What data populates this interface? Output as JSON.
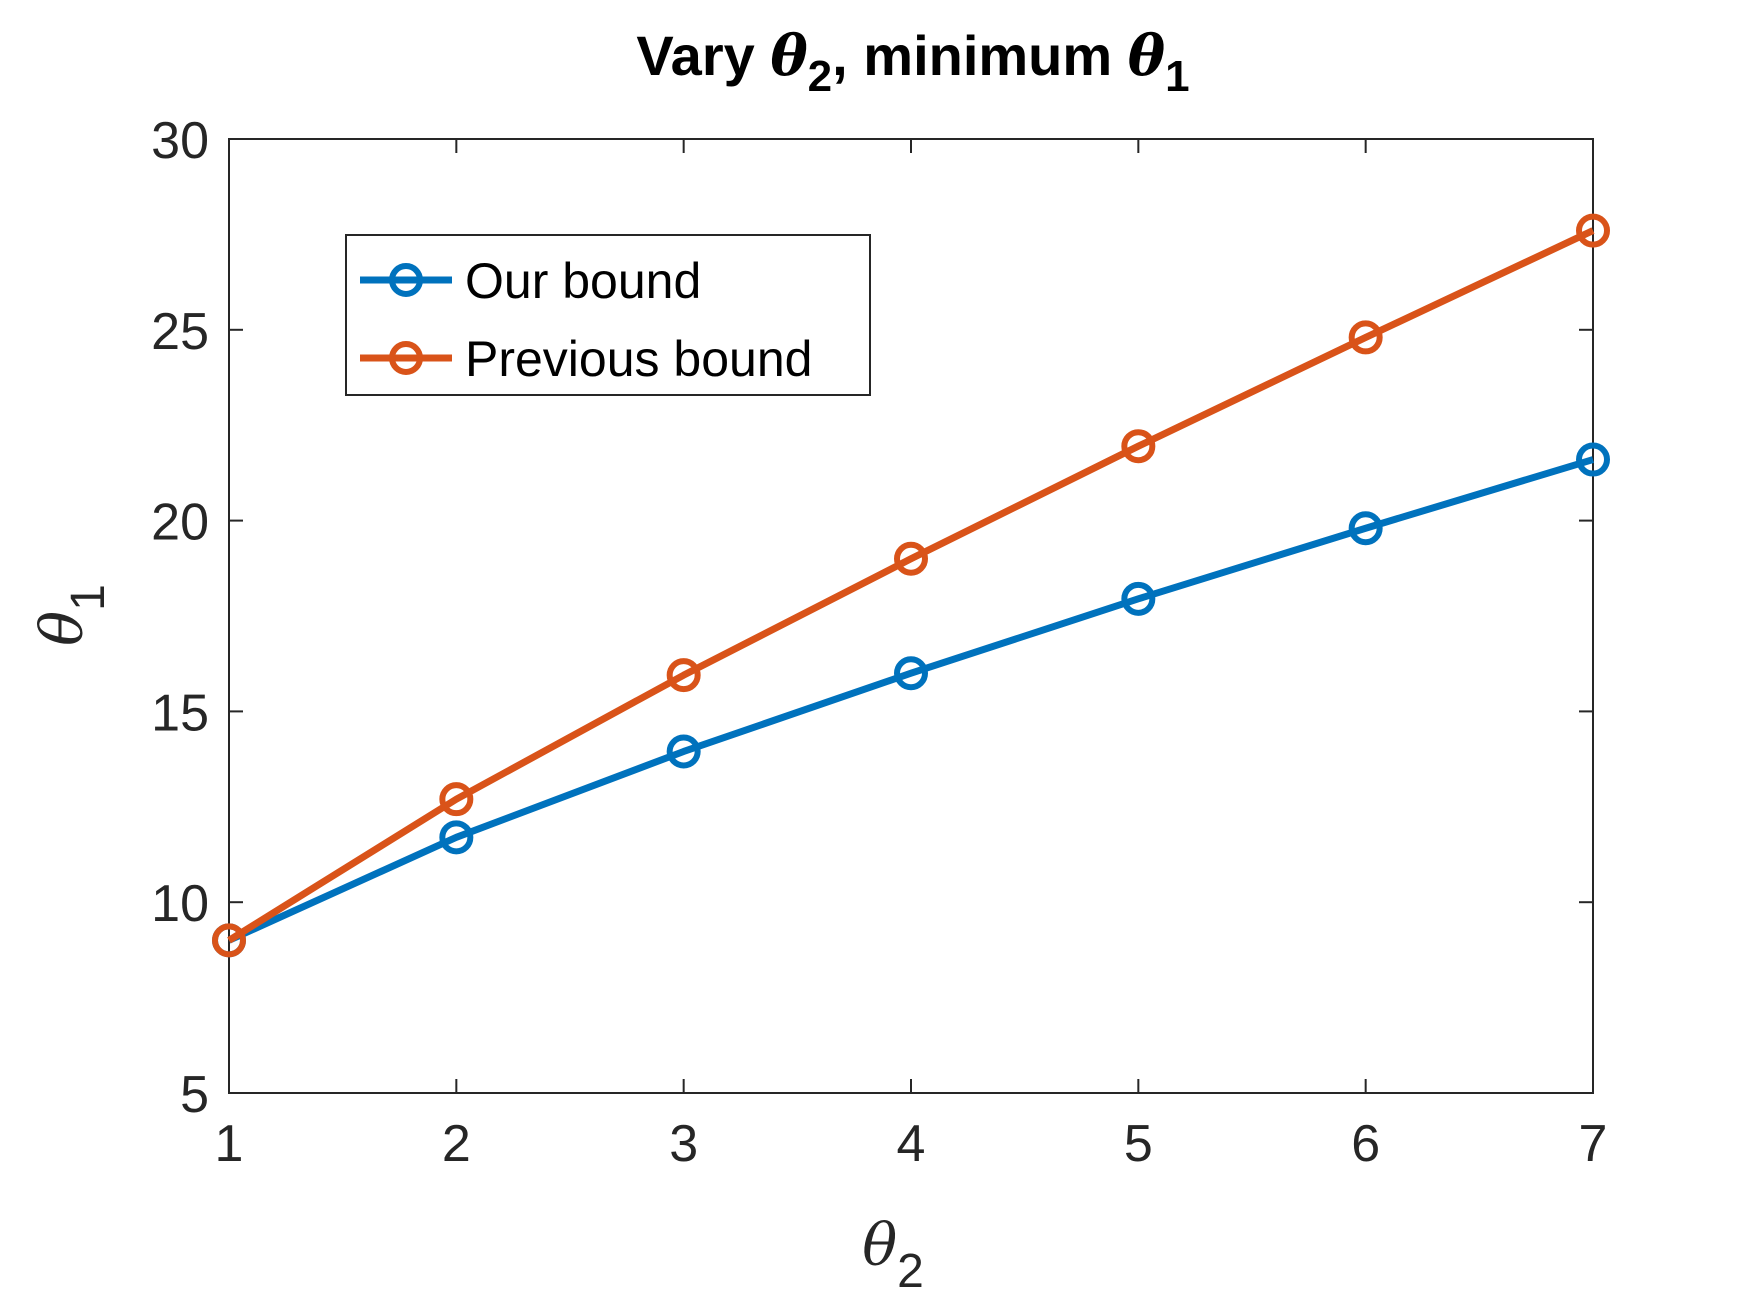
{
  "chart_data": {
    "type": "line",
    "title": {
      "prefix": "Vary ",
      "sym1": "θ",
      "sub1": "2",
      "middle": ", minimum ",
      "sym2": "θ",
      "sub2": "1"
    },
    "xlabel": {
      "sym": "θ",
      "sub": "2"
    },
    "ylabel": {
      "sym": "θ",
      "sub": "1"
    },
    "x": [
      1,
      2,
      3,
      4,
      5,
      6,
      7
    ],
    "xlim": [
      1,
      7
    ],
    "ylim": [
      5,
      30
    ],
    "xticks": [
      "1",
      "2",
      "3",
      "4",
      "5",
      "6",
      "7"
    ],
    "yticks": [
      "5",
      "10",
      "15",
      "20",
      "25",
      "30"
    ],
    "grid": false,
    "legend_position": "top-left",
    "series": [
      {
        "name": "Our bound",
        "color": "#0072BD",
        "marker": "circle",
        "values": [
          9.0,
          11.7,
          13.95,
          16.0,
          17.95,
          19.8,
          21.6
        ]
      },
      {
        "name": "Previous bound",
        "color": "#D95319",
        "marker": "circle",
        "values": [
          9.0,
          12.7,
          15.95,
          19.0,
          21.95,
          24.8,
          27.6
        ]
      }
    ]
  }
}
